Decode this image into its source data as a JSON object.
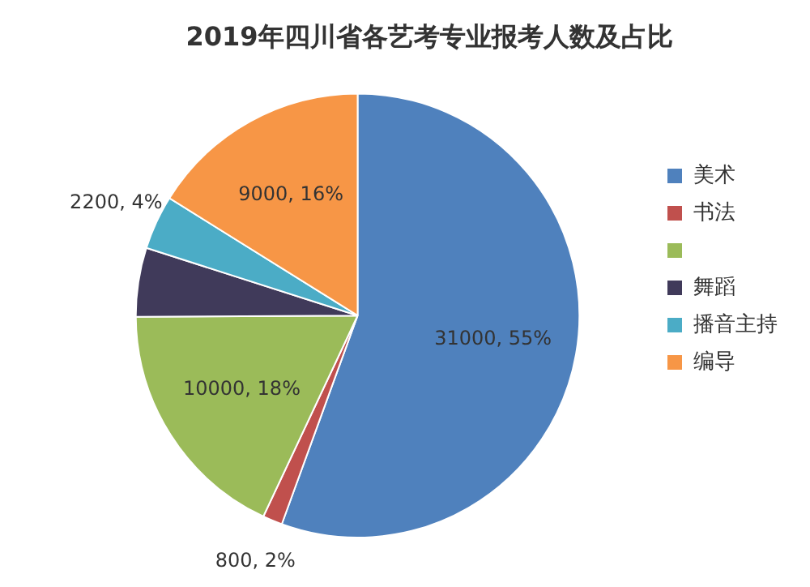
{
  "chart_data": {
    "type": "pie",
    "title": "2019年四川省各艺考专业报考人数及占比",
    "categories": [
      "美术",
      "书法",
      null,
      "舞蹈",
      "播音主持",
      "编导"
    ],
    "values": [
      31000,
      800,
      10000,
      2800,
      2200,
      9000
    ],
    "colors": [
      "#4f81bd",
      "#c0504d",
      "#9bbb59",
      "#403a5a",
      "#4bacc6",
      "#f79646"
    ],
    "value_labels": [
      "31000, 55%",
      "800, 2%",
      "10000, 18%",
      null,
      "2200, 4%",
      "9000, 16%"
    ],
    "legend": "right"
  }
}
